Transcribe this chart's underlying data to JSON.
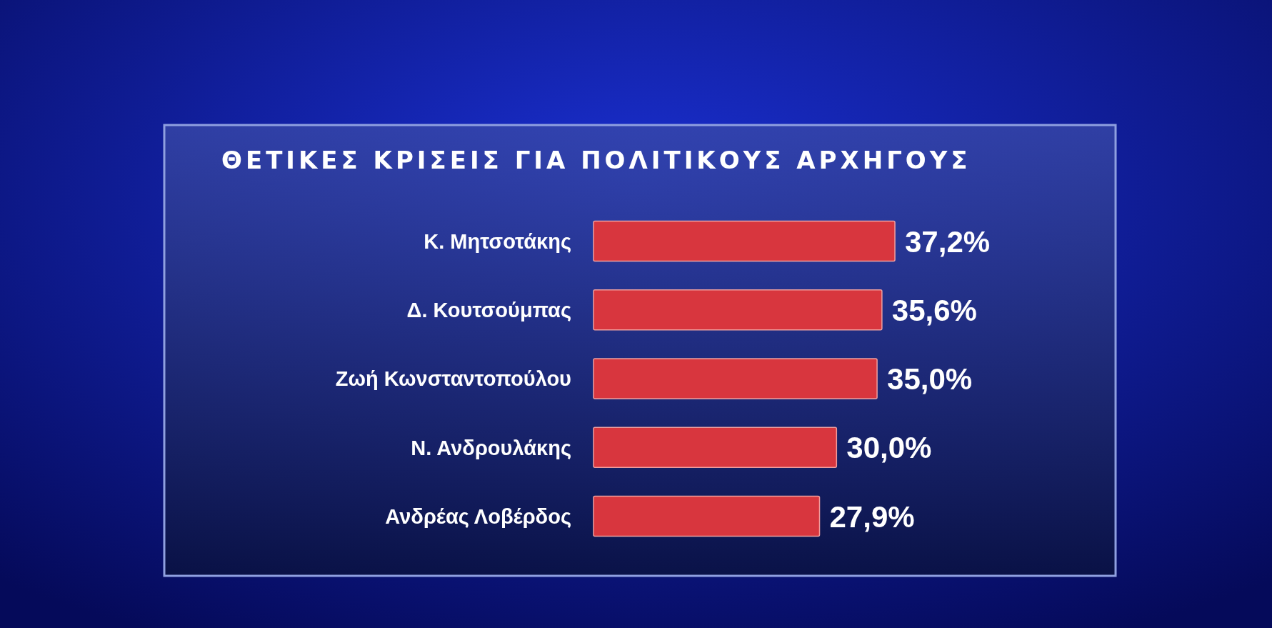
{
  "chart_data": {
    "type": "bar",
    "orientation": "horizontal",
    "title": "ΘΕΤΙΚΕΣ ΚΡΙΣΕΙΣ ΓΙΑ ΠΟΛΙΤΙΚΟΥΣ ΑΡΧΗΓΟΥΣ",
    "categories": [
      "Κ. Μητσοτάκης",
      "Δ. Κουτσούμπας",
      "Ζωή Κωνσταντοπούλου",
      "Ν. Ανδρουλάκης",
      "Ανδρέας Λοβέρδος"
    ],
    "values": [
      37.2,
      35.6,
      35.0,
      30.0,
      27.9
    ],
    "value_labels": [
      "37,2%",
      "35,6%",
      "35,0%",
      "30,0%",
      "27,9%"
    ],
    "color": "#d8363e"
  }
}
